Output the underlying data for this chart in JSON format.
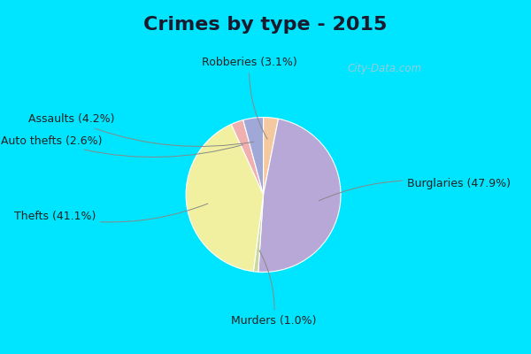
{
  "title": "Crimes by type - 2015",
  "title_fontsize": 16,
  "title_fontweight": "bold",
  "title_color": "#1a1a2e",
  "slices": [
    {
      "label": "Robberies",
      "pct": 3.1,
      "color": "#f5c9a0"
    },
    {
      "label": "Burglaries",
      "pct": 47.9,
      "color": "#b8a8d8"
    },
    {
      "label": "Murders",
      "pct": 1.0,
      "color": "#c8d8a0"
    },
    {
      "label": "Thefts",
      "pct": 41.1,
      "color": "#f0f0a0"
    },
    {
      "label": "Auto thefts",
      "pct": 2.6,
      "color": "#f0b0b0"
    },
    {
      "label": "Assaults",
      "pct": 4.2,
      "color": "#a0a8d8"
    }
  ],
  "startangle": 90,
  "bg_border_color": "#00e5ff",
  "bg_inner_color": "#d8f0e0",
  "watermark": "City-Data.com",
  "annots": [
    {
      "label": "Robberies (3.1%)",
      "side": "top",
      "xt": -0.05,
      "yt": 1.18
    },
    {
      "label": "Burglaries (47.9%)",
      "side": "right",
      "xt": 1.42,
      "yt": 0.05
    },
    {
      "label": "Murders (1.0%)",
      "side": "bottom",
      "xt": 0.18,
      "yt": -1.22
    },
    {
      "label": "Thefts (41.1%)",
      "side": "left",
      "xt": -1.48,
      "yt": -0.25
    },
    {
      "label": "Auto thefts (2.6%)",
      "side": "left",
      "xt": -1.42,
      "yt": 0.45
    },
    {
      "label": "Assaults (4.2%)",
      "side": "left",
      "xt": -1.3,
      "yt": 0.65
    }
  ],
  "fontsize": 9
}
